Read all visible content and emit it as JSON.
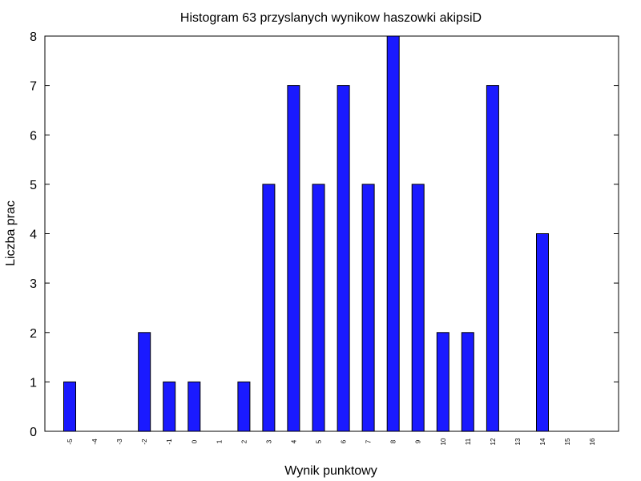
{
  "chart_data": {
    "type": "bar",
    "title": "Histogram 63 przyslanych wynikow haszowki akipsiD",
    "xlabel": "Wynik punktowy",
    "ylabel": "Liczba prac",
    "categories": [
      "-5",
      "-4",
      "-3",
      "-2",
      "-1",
      "0",
      "1",
      "2",
      "3",
      "4",
      "5",
      "6",
      "7",
      "8",
      "9",
      "10",
      "11",
      "12",
      "13",
      "14",
      "15",
      "16"
    ],
    "values": [
      1,
      0,
      0,
      2,
      1,
      1,
      0,
      1,
      5,
      7,
      5,
      7,
      5,
      8,
      5,
      2,
      2,
      7,
      0,
      4,
      0,
      0
    ],
    "ylim": [
      0,
      8
    ],
    "yticks": [
      "0",
      "1",
      "2",
      "3",
      "4",
      "5",
      "6",
      "7",
      "8"
    ],
    "bar_color": "#1a1aff",
    "grid": false,
    "legend": false
  }
}
